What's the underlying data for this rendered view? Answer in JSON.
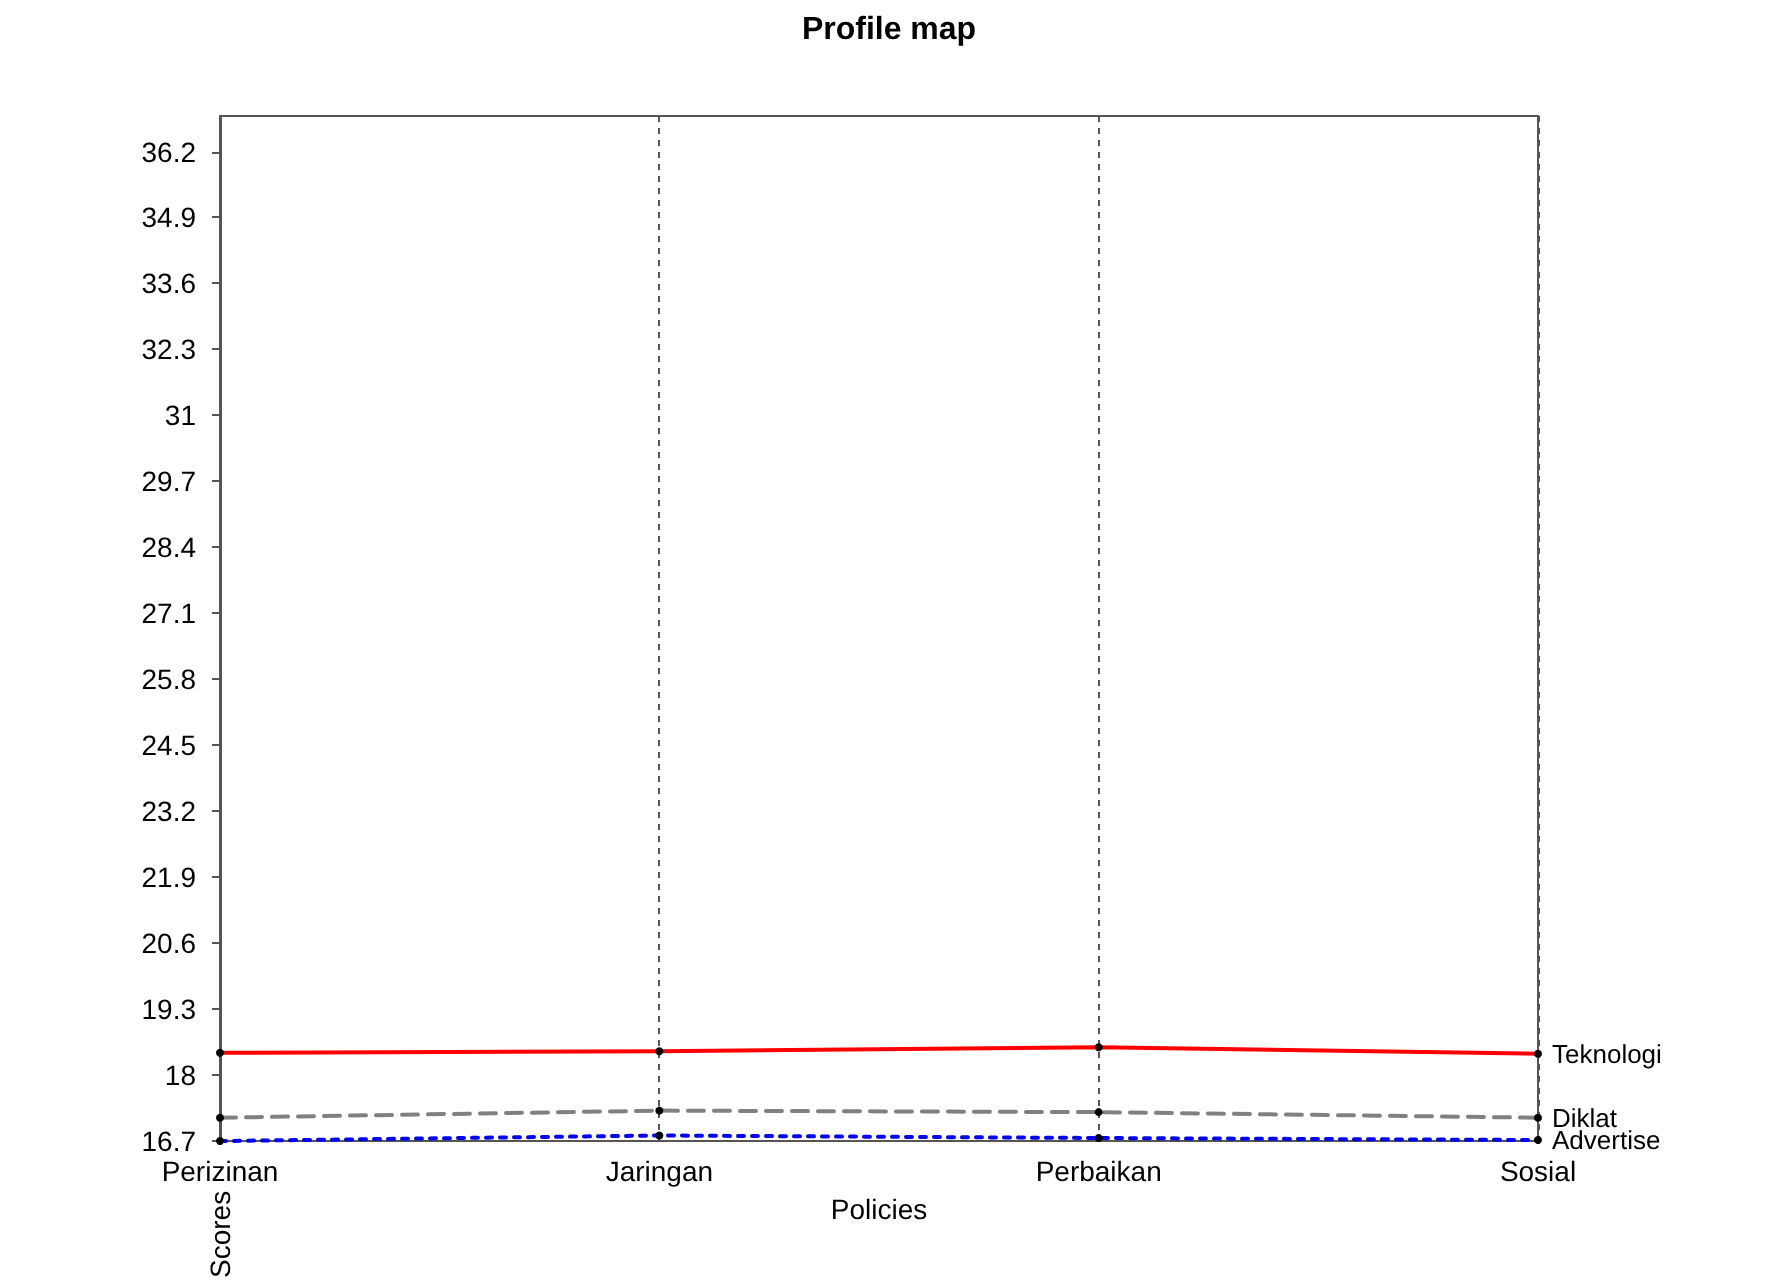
{
  "chart_data": {
    "type": "line",
    "title": "Profile map",
    "xlabel": "Policies",
    "ylabel": "Scores",
    "categories": [
      "Perizinan",
      "Jaringan",
      "Perbaikan",
      "Sosial"
    ],
    "series": [
      {
        "name": "Teknologi",
        "color": "#ff0000",
        "line_style": "solid",
        "values": [
          18.44,
          18.47,
          18.55,
          18.42
        ]
      },
      {
        "name": "Diklat",
        "color": "#808080",
        "line_style": "dashed",
        "values": [
          17.16,
          17.3,
          17.27,
          17.16
        ]
      },
      {
        "name": "Advertise",
        "color": "#0000ff",
        "line_style": "dotted",
        "values": [
          16.7,
          16.81,
          16.76,
          16.72
        ]
      }
    ],
    "ylim": [
      16.7,
      36.9
    ],
    "yticks": [
      16.7,
      18,
      19.3,
      20.6,
      21.9,
      23.2,
      24.5,
      25.8,
      27.1,
      28.4,
      29.7,
      31,
      32.3,
      33.6,
      34.9,
      36.2
    ],
    "grid": "x",
    "legend": false,
    "marker": "circle"
  }
}
